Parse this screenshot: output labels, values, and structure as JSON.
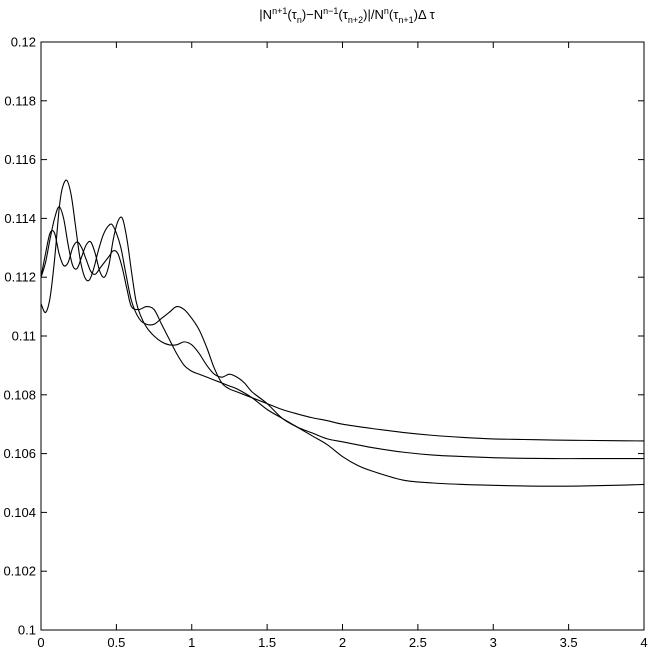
{
  "chart_data": {
    "type": "line",
    "title": {
      "parts": [
        {
          "t": "|N",
          "k": "n"
        },
        {
          "t": "n+1",
          "k": "sup"
        },
        {
          "t": "(τ",
          "k": "n"
        },
        {
          "t": "n",
          "k": "sub"
        },
        {
          "t": ")−N",
          "k": "n"
        },
        {
          "t": "n−1",
          "k": "sup"
        },
        {
          "t": "(τ",
          "k": "n"
        },
        {
          "t": "n+2",
          "k": "sub"
        },
        {
          "t": ")|/N",
          "k": "n"
        },
        {
          "t": "n",
          "k": "sup"
        },
        {
          "t": "(τ",
          "k": "n"
        },
        {
          "t": "n+1",
          "k": "sub"
        },
        {
          "t": ")Δ τ",
          "k": "n"
        }
      ]
    },
    "xlabel": "",
    "ylabel": "",
    "xlim": [
      0,
      4
    ],
    "ylim": [
      0.1,
      0.12
    ],
    "x_ticks": [
      "0",
      "0.5",
      "1",
      "1.5",
      "2",
      "2.5",
      "3",
      "3.5",
      "4"
    ],
    "y_ticks": [
      "0.1",
      "0.102",
      "0.104",
      "0.106",
      "0.108",
      "0.11",
      "0.112",
      "0.114",
      "0.116",
      "0.118",
      "0.12"
    ],
    "grid": false,
    "legend": "none",
    "series": [
      {
        "points": [
          [
            0,
            0.1111
          ],
          [
            0.03,
            0.1108
          ],
          [
            0.06,
            0.1113
          ],
          [
            0.09,
            0.1126
          ],
          [
            0.12,
            0.1143
          ],
          [
            0.14,
            0.115
          ],
          [
            0.17,
            0.1153
          ],
          [
            0.2,
            0.1148
          ],
          [
            0.23,
            0.1137
          ],
          [
            0.26,
            0.1126
          ],
          [
            0.29,
            0.112
          ],
          [
            0.32,
            0.1119
          ],
          [
            0.35,
            0.1123
          ],
          [
            0.38,
            0.1129
          ],
          [
            0.41,
            0.1134
          ],
          [
            0.44,
            0.1137
          ],
          [
            0.47,
            0.1138
          ],
          [
            0.5,
            0.1135
          ],
          [
            0.53,
            0.113
          ],
          [
            0.56,
            0.1122
          ],
          [
            0.6,
            0.1112
          ],
          [
            0.65,
            0.1106
          ],
          [
            0.7,
            0.1104
          ],
          [
            0.75,
            0.1104
          ],
          [
            0.8,
            0.1106
          ],
          [
            0.85,
            0.1108
          ],
          [
            0.9,
            0.111
          ],
          [
            0.95,
            0.1109
          ],
          [
            1.0,
            0.1106
          ],
          [
            1.05,
            0.1102
          ],
          [
            1.1,
            0.1096
          ],
          [
            1.15,
            0.1089
          ],
          [
            1.2,
            0.1084
          ],
          [
            1.25,
            0.1082
          ],
          [
            1.3,
            0.1081
          ],
          [
            1.4,
            0.1079
          ],
          [
            1.5,
            0.1077
          ],
          [
            1.6,
            0.1075
          ],
          [
            1.7,
            0.10735
          ],
          [
            1.8,
            0.10722
          ],
          [
            1.9,
            0.10712
          ],
          [
            2.0,
            0.107
          ],
          [
            2.2,
            0.10685
          ],
          [
            2.4,
            0.10672
          ],
          [
            2.6,
            0.10662
          ],
          [
            2.8,
            0.10655
          ],
          [
            3.0,
            0.1065
          ],
          [
            3.2,
            0.10648
          ],
          [
            3.4,
            0.10646
          ],
          [
            3.6,
            0.10645
          ],
          [
            3.8,
            0.10644
          ],
          [
            4.0,
            0.10643
          ]
        ]
      },
      {
        "points": [
          [
            0,
            0.112
          ],
          [
            0.03,
            0.1125
          ],
          [
            0.06,
            0.1133
          ],
          [
            0.09,
            0.114
          ],
          [
            0.12,
            0.1144
          ],
          [
            0.15,
            0.114
          ],
          [
            0.18,
            0.1131
          ],
          [
            0.21,
            0.1124
          ],
          [
            0.24,
            0.1123
          ],
          [
            0.27,
            0.1127
          ],
          [
            0.3,
            0.1131
          ],
          [
            0.33,
            0.1132
          ],
          [
            0.36,
            0.1128
          ],
          [
            0.39,
            0.1122
          ],
          [
            0.42,
            0.112
          ],
          [
            0.45,
            0.1124
          ],
          [
            0.48,
            0.1133
          ],
          [
            0.51,
            0.1139
          ],
          [
            0.54,
            0.114
          ],
          [
            0.57,
            0.1133
          ],
          [
            0.6,
            0.1122
          ],
          [
            0.63,
            0.1112
          ],
          [
            0.66,
            0.1107
          ],
          [
            0.7,
            0.1103
          ],
          [
            0.75,
            0.11
          ],
          [
            0.8,
            0.1098
          ],
          [
            0.85,
            0.1097
          ],
          [
            0.9,
            0.1097
          ],
          [
            0.95,
            0.1098
          ],
          [
            1.0,
            0.1097
          ],
          [
            1.05,
            0.1094
          ],
          [
            1.1,
            0.109
          ],
          [
            1.15,
            0.1087
          ],
          [
            1.2,
            0.1086
          ],
          [
            1.25,
            0.1087
          ],
          [
            1.3,
            0.1086
          ],
          [
            1.35,
            0.1084
          ],
          [
            1.4,
            0.1081
          ],
          [
            1.5,
            0.1077
          ],
          [
            1.6,
            0.1072
          ],
          [
            1.7,
            0.1069
          ],
          [
            1.8,
            0.1067
          ],
          [
            1.9,
            0.1065
          ],
          [
            2.0,
            0.1064
          ],
          [
            2.1,
            0.1063
          ],
          [
            2.2,
            0.1062
          ],
          [
            2.4,
            0.10605
          ],
          [
            2.6,
            0.10595
          ],
          [
            2.8,
            0.1059
          ],
          [
            3.0,
            0.10586
          ],
          [
            3.2,
            0.10584
          ],
          [
            3.4,
            0.10583
          ],
          [
            3.6,
            0.10583
          ],
          [
            3.8,
            0.10583
          ],
          [
            4.0,
            0.10583
          ]
        ]
      },
      {
        "points": [
          [
            0,
            0.112
          ],
          [
            0.03,
            0.1128
          ],
          [
            0.06,
            0.1135
          ],
          [
            0.09,
            0.1135
          ],
          [
            0.12,
            0.1128
          ],
          [
            0.15,
            0.1124
          ],
          [
            0.18,
            0.1125
          ],
          [
            0.21,
            0.113
          ],
          [
            0.24,
            0.1132
          ],
          [
            0.27,
            0.113
          ],
          [
            0.3,
            0.1126
          ],
          [
            0.33,
            0.1122
          ],
          [
            0.36,
            0.1121
          ],
          [
            0.39,
            0.1123
          ],
          [
            0.42,
            0.1125
          ],
          [
            0.45,
            0.1127
          ],
          [
            0.48,
            0.1129
          ],
          [
            0.51,
            0.1128
          ],
          [
            0.54,
            0.1123
          ],
          [
            0.57,
            0.1116
          ],
          [
            0.6,
            0.111
          ],
          [
            0.65,
            0.1109
          ],
          [
            0.7,
            0.111
          ],
          [
            0.75,
            0.1109
          ],
          [
            0.8,
            0.1104
          ],
          [
            0.85,
            0.1099
          ],
          [
            0.9,
            0.1094
          ],
          [
            0.95,
            0.109
          ],
          [
            1.0,
            0.1088
          ],
          [
            1.05,
            0.1087
          ],
          [
            1.1,
            0.1086
          ],
          [
            1.15,
            0.1085
          ],
          [
            1.2,
            0.1084
          ],
          [
            1.25,
            0.1083
          ],
          [
            1.3,
            0.1082
          ],
          [
            1.4,
            0.1079
          ],
          [
            1.5,
            0.1075
          ],
          [
            1.6,
            0.1072
          ],
          [
            1.7,
            0.1069
          ],
          [
            1.8,
            0.1066
          ],
          [
            1.9,
            0.1063
          ],
          [
            2.0,
            0.1059
          ],
          [
            2.1,
            0.1056
          ],
          [
            2.2,
            0.1054
          ],
          [
            2.4,
            0.1051
          ],
          [
            2.6,
            0.105
          ],
          [
            2.8,
            0.10495
          ],
          [
            3.0,
            0.10492
          ],
          [
            3.2,
            0.1049
          ],
          [
            3.4,
            0.10489
          ],
          [
            3.6,
            0.1049
          ],
          [
            3.8,
            0.10492
          ],
          [
            4.0,
            0.10495
          ]
        ]
      }
    ]
  }
}
